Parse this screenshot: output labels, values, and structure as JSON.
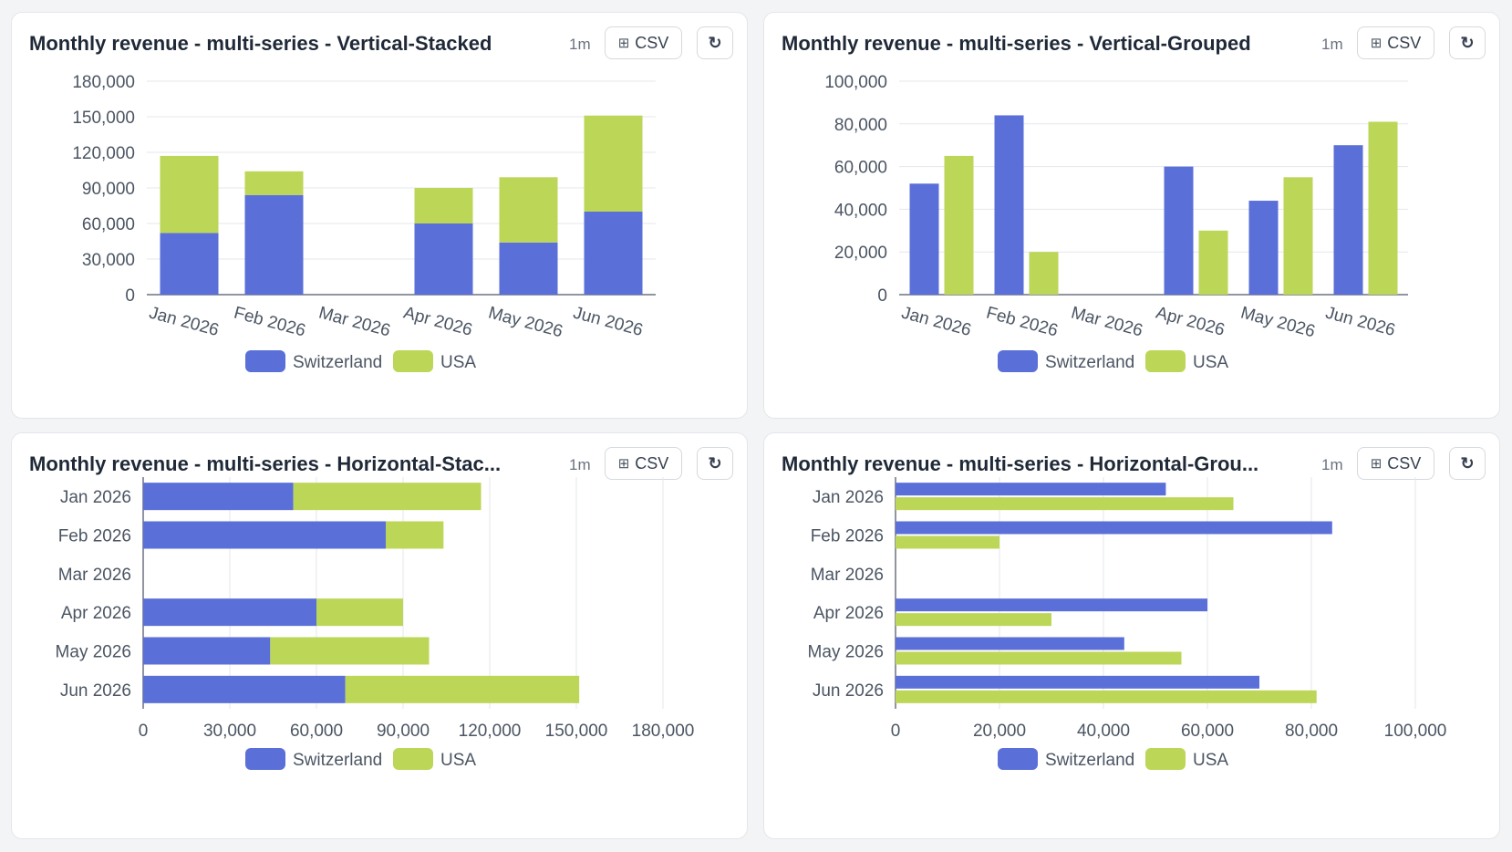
{
  "colors": {
    "switzerland": "#5a6fd8",
    "usa": "#bcd657",
    "grid": "#e5e7eb",
    "axis": "#6b7280"
  },
  "icons": {
    "csv": "table-grid-icon",
    "refresh": "refresh-icon"
  },
  "panels": [
    {
      "title": "Monthly revenue - multi-series - Vertical-Stacked",
      "age": "1m",
      "csv_label": "CSV"
    },
    {
      "title": "Monthly revenue - multi-series - Vertical-Grouped",
      "age": "1m",
      "csv_label": "CSV"
    },
    {
      "title": "Monthly revenue - multi-series - Horizontal-Stac...",
      "age": "1m",
      "csv_label": "CSV"
    },
    {
      "title": "Monthly revenue - multi-series - Horizontal-Grou...",
      "age": "1m",
      "csv_label": "CSV"
    }
  ],
  "chart_data": [
    {
      "type": "bar",
      "orientation": "vertical",
      "mode": "stacked",
      "categories": [
        "Jan 2026",
        "Feb 2026",
        "Mar 2026",
        "Apr 2026",
        "May 2026",
        "Jun 2026"
      ],
      "series": [
        {
          "name": "Switzerland",
          "values": [
            52000,
            84000,
            0,
            60000,
            44000,
            70000
          ]
        },
        {
          "name": "USA",
          "values": [
            65000,
            20000,
            0,
            30000,
            55000,
            81000
          ]
        }
      ],
      "ticks": [
        "0",
        "30,000",
        "60,000",
        "90,000",
        "120,000",
        "150,000",
        "180,000"
      ],
      "ylim": [
        0,
        180000
      ],
      "legend": "bottom",
      "grid": true
    },
    {
      "type": "bar",
      "orientation": "vertical",
      "mode": "grouped",
      "categories": [
        "Jan 2026",
        "Feb 2026",
        "Mar 2026",
        "Apr 2026",
        "May 2026",
        "Jun 2026"
      ],
      "series": [
        {
          "name": "Switzerland",
          "values": [
            52000,
            84000,
            0,
            60000,
            44000,
            70000
          ]
        },
        {
          "name": "USA",
          "values": [
            65000,
            20000,
            0,
            30000,
            55000,
            81000
          ]
        }
      ],
      "ticks": [
        "0",
        "20,000",
        "40,000",
        "60,000",
        "80,000",
        "100,000"
      ],
      "ylim": [
        0,
        100000
      ],
      "legend": "bottom",
      "grid": true
    },
    {
      "type": "bar",
      "orientation": "horizontal",
      "mode": "stacked",
      "categories": [
        "Jan 2026",
        "Feb 2026",
        "Mar 2026",
        "Apr 2026",
        "May 2026",
        "Jun 2026"
      ],
      "series": [
        {
          "name": "Switzerland",
          "values": [
            52000,
            84000,
            0,
            60000,
            44000,
            70000
          ]
        },
        {
          "name": "USA",
          "values": [
            65000,
            20000,
            0,
            30000,
            55000,
            81000
          ]
        }
      ],
      "ticks": [
        "0",
        "30,000",
        "60,000",
        "90,000",
        "120,000",
        "150,000",
        "180,000"
      ],
      "xlim": [
        0,
        180000
      ],
      "legend": "bottom",
      "grid": true
    },
    {
      "type": "bar",
      "orientation": "horizontal",
      "mode": "grouped",
      "categories": [
        "Jan 2026",
        "Feb 2026",
        "Mar 2026",
        "Apr 2026",
        "May 2026",
        "Jun 2026"
      ],
      "series": [
        {
          "name": "Switzerland",
          "values": [
            52000,
            84000,
            0,
            60000,
            44000,
            70000
          ]
        },
        {
          "name": "USA",
          "values": [
            65000,
            20000,
            0,
            30000,
            55000,
            81000
          ]
        }
      ],
      "ticks": [
        "0",
        "20,000",
        "40,000",
        "60,000",
        "80,000",
        "100,000"
      ],
      "xlim": [
        0,
        100000
      ],
      "legend": "bottom",
      "grid": true
    }
  ]
}
